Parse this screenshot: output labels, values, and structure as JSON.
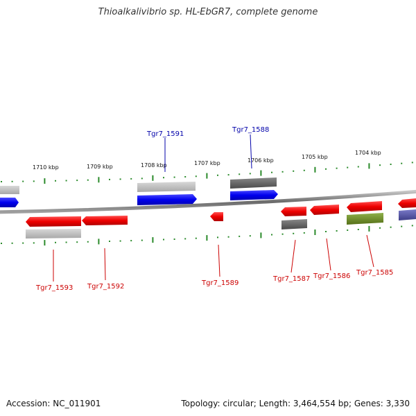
{
  "title": "Thioalkalivibrio sp. HL-EbGR7, complete genome",
  "footer": {
    "accession": "Accession: NC_011901",
    "summary": "Topology: circular; Length: 3,464,554 bp; Genes: 3,330"
  },
  "colors": {
    "forward_gene": "#0000ee",
    "reverse_gene": "#ee0000",
    "tick_mark": "#2a8a2a",
    "backbone": "#888888",
    "label_forward": "#0000aa",
    "label_reverse": "#cc0000",
    "cog_light": "#b8b8b8",
    "cog_dark": "#666666",
    "cog_green": "#6b8e23",
    "cog_purple": "#5b5ba8"
  },
  "scale_labels": [
    "1710 kbp",
    "1709 kbp",
    "1708 kbp",
    "1707 kbp",
    "1706 kbp",
    "1705 kbp",
    "1704 kbp"
  ],
  "genes": [
    {
      "name": "Tgr7_1593",
      "strand": "reverse"
    },
    {
      "name": "Tgr7_1592",
      "strand": "reverse"
    },
    {
      "name": "Tgr7_1591",
      "strand": "forward"
    },
    {
      "name": "Tgr7_1589",
      "strand": "reverse"
    },
    {
      "name": "Tgr7_1588",
      "strand": "forward"
    },
    {
      "name": "Tgr7_1587",
      "strand": "reverse"
    },
    {
      "name": "Tgr7_1586",
      "strand": "reverse"
    },
    {
      "name": "Tgr7_1585",
      "strand": "reverse"
    }
  ]
}
